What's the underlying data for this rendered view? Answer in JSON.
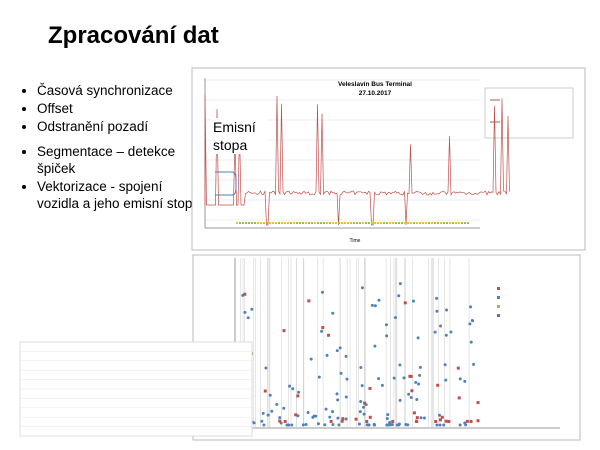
{
  "title": "Zpracování dat",
  "bullets": [
    "Časová synchronizace",
    "Offset",
    "Odstranění pozadí",
    "Segmentace – detekce špiček",
    "Vektorizace  - spojení vozidla a jeho emisní stopy"
  ],
  "annotation": "Emisní stopa",
  "chart1": {
    "title": "Veleslavín Bus Terminal",
    "subtitle": "27.10.2017",
    "x_label": "Time"
  }
}
